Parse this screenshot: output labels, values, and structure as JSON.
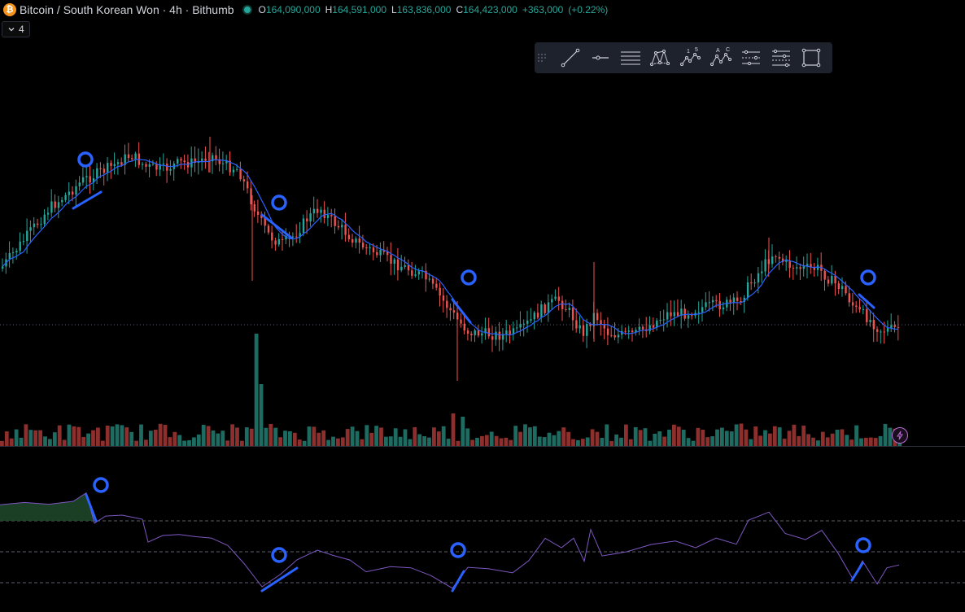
{
  "header": {
    "logo_glyph": "₿",
    "symbol_title": "Bitcoin / South Korean Won · 4h · Bithumb",
    "status_color": "#26a69a",
    "ohlc": [
      {
        "label": "O",
        "value": "164,090,000"
      },
      {
        "label": "H",
        "value": "164,591,000"
      },
      {
        "label": "L",
        "value": "163,836,000"
      },
      {
        "label": "C",
        "value": "164,423,000"
      }
    ],
    "change": "+363,000",
    "change_pct": "(+0.22%)"
  },
  "interval_badge": {
    "chevron_icon": "chevron-down-icon",
    "value": "4"
  },
  "toolbar": {
    "tools": [
      {
        "name": "trend-line-icon"
      },
      {
        "name": "horizontal-ray-icon"
      },
      {
        "name": "horizontal-lines-icon"
      },
      {
        "name": "xabcd-pattern-icon"
      },
      {
        "name": "elliott-wave-icon"
      },
      {
        "name": "abc-wave-icon"
      },
      {
        "name": "price-range-icon"
      },
      {
        "name": "date-price-range-icon"
      },
      {
        "name": "rectangle-icon"
      }
    ]
  },
  "chart": {
    "up_color": "#26a69a",
    "down_color": "#ef5350",
    "ma_color": "#2962ff",
    "annotation_color": "#2962ff",
    "rsi_color": "#7e57c2"
  },
  "badges": {
    "bolt_icon": "lightning-bolt-icon"
  }
}
